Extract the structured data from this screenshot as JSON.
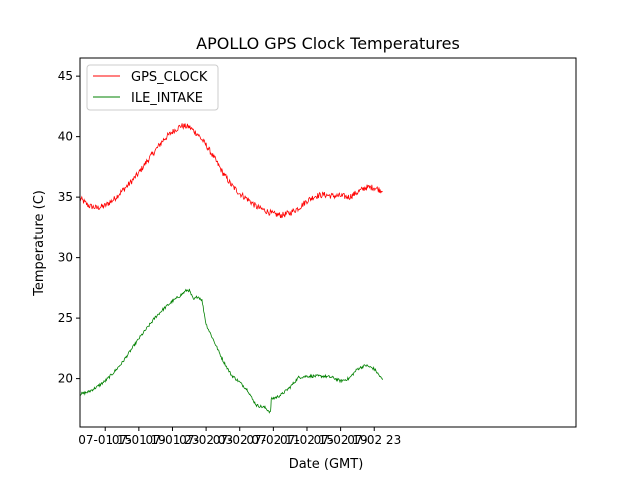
{
  "chart_data": {
    "type": "line",
    "title": "APOLLO GPS Clock Temperatures",
    "xlabel": "Date (GMT)",
    "ylabel": "Temperature (C)",
    "xlim": [
      "07-01 12:00",
      "07-03 23:00"
    ],
    "ylim": [
      16,
      46.5
    ],
    "x_ticks": [
      "07-01 15",
      "07-01 19",
      "07-01 23",
      "07-02 03",
      "07-02 07",
      "07-02 11",
      "07-02 15",
      "07-02 19",
      "07-02 23"
    ],
    "y_ticks": [
      20,
      25,
      30,
      35,
      40,
      45
    ],
    "grid": false,
    "legend": {
      "placement": "top-left"
    },
    "series": [
      {
        "name": "GPS_CLOCK",
        "color": "#ff0000",
        "noise": 0.25,
        "x": [
          "07-01 12:00",
          "07-01 13:00",
          "07-01 14:00",
          "07-01 15:00",
          "07-01 16:00",
          "07-01 17:00",
          "07-01 18:00",
          "07-01 19:00",
          "07-01 20:00",
          "07-01 21:00",
          "07-01 22:00",
          "07-01 23:00",
          "07-02 00:00",
          "07-02 01:00",
          "07-02 02:00",
          "07-02 03:00",
          "07-02 04:00",
          "07-02 05:00",
          "07-02 06:00",
          "07-02 07:00",
          "07-02 08:00",
          "07-02 09:00",
          "07-02 10:00",
          "07-02 11:00",
          "07-02 12:00",
          "07-02 13:00",
          "07-02 14:00",
          "07-02 15:00",
          "07-02 16:00",
          "07-02 17:00",
          "07-02 18:00",
          "07-02 19:00",
          "07-02 20:00",
          "07-02 21:00",
          "07-02 22:00",
          "07-02 23:00",
          "07-02 23:59"
        ],
        "y": [
          34.9,
          34.3,
          34.1,
          34.3,
          34.8,
          35.5,
          36.2,
          37.0,
          38.0,
          38.9,
          39.8,
          40.4,
          40.9,
          40.8,
          40.2,
          39.3,
          38.2,
          37.0,
          36.0,
          35.3,
          34.8,
          34.2,
          33.9,
          33.6,
          33.5,
          33.7,
          34.1,
          34.7,
          35.1,
          35.2,
          35.1,
          35.1,
          35.0,
          35.4,
          35.8,
          35.8,
          35.5
        ]
      },
      {
        "name": "ILE_INTAKE",
        "color": "#008000",
        "noise": 0.12,
        "x": [
          "07-01 12:00",
          "07-01 13:00",
          "07-01 14:00",
          "07-01 15:00",
          "07-01 16:00",
          "07-01 17:00",
          "07-01 18:00",
          "07-01 19:00",
          "07-01 20:00",
          "07-01 21:00",
          "07-01 22:00",
          "07-01 23:00",
          "07-02 00:00",
          "07-02 00:30",
          "07-02 00:40",
          "07-02 01:00",
          "07-02 01:30",
          "07-02 02:00",
          "07-02 02:30",
          "07-02 03:00",
          "07-02 04:00",
          "07-02 05:00",
          "07-02 06:00",
          "07-02 07:00",
          "07-02 08:00",
          "07-02 08:30",
          "07-02 09:00",
          "07-02 10:00",
          "07-02 10:40",
          "07-02 10:45",
          "07-02 11:30",
          "07-02 12:00",
          "07-02 13:00",
          "07-02 14:00",
          "07-02 15:00",
          "07-02 16:00",
          "07-02 17:00",
          "07-02 18:00",
          "07-02 19:00",
          "07-02 20:00",
          "07-02 21:00",
          "07-02 22:00",
          "07-02 23:00",
          "07-02 23:59"
        ],
        "y": [
          18.7,
          18.9,
          19.3,
          19.8,
          20.5,
          21.3,
          22.3,
          23.3,
          24.2,
          25.1,
          25.8,
          26.4,
          26.9,
          27.2,
          27.3,
          27.3,
          26.5,
          26.8,
          26.5,
          24.5,
          23.0,
          21.5,
          20.3,
          19.7,
          19.0,
          18.3,
          17.8,
          17.6,
          17.2,
          18.3,
          18.5,
          18.7,
          19.3,
          20.1,
          20.2,
          20.2,
          20.2,
          20.1,
          19.8,
          20.0,
          20.8,
          21.1,
          20.8,
          19.9
        ]
      }
    ]
  }
}
